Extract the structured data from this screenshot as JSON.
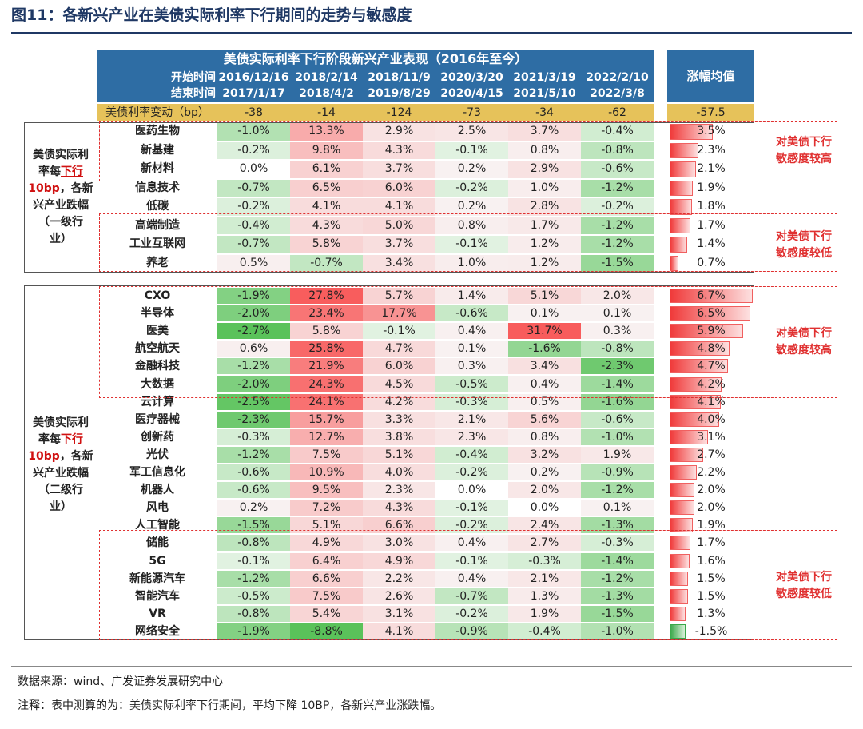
{
  "title": "图11：各新兴产业在美债实际利率下行期间的走势与敏感度",
  "header": {
    "table_title": "美债实际利率下行阶段新兴产业表现（2016年至今）",
    "start_label": "开始时间",
    "end_label": "结束时间",
    "periods": [
      {
        "start": "2016/12/16",
        "end": "2017/1/17"
      },
      {
        "start": "2018/2/14",
        "end": "2018/4/2"
      },
      {
        "start": "2018/11/9",
        "end": "2019/8/29"
      },
      {
        "start": "2020/3/20",
        "end": "2020/4/15"
      },
      {
        "start": "2021/3/19",
        "end": "2021/5/10"
      },
      {
        "start": "2022/2/10",
        "end": "2022/3/8"
      }
    ],
    "avg_label": "涨幅均值",
    "rate_change_label": "美债利率变动（bp）",
    "rate_changes": [
      "-38",
      "-14",
      "-124",
      "-73",
      "-34",
      "-62"
    ],
    "rate_change_avg": "-57.5"
  },
  "group1": {
    "side_label_a": "美债实际利",
    "side_label_b": "率每",
    "side_label_red": "下行",
    "side_label_c": "10bp",
    "side_label_d": "，各新",
    "side_label_e": "兴产业跌幅",
    "side_label_f": "（一级行",
    "side_label_g": "业）",
    "rows": [
      {
        "name": "医药生物",
        "values": [
          "-1.0%",
          "13.3%",
          "2.9%",
          "2.5%",
          "3.7%",
          "-0.4%"
        ],
        "nums": [
          -1.0,
          13.3,
          2.9,
          2.5,
          3.7,
          -0.4
        ],
        "avg": "3.5%",
        "avg_num": 3.5
      },
      {
        "name": "新基建",
        "values": [
          "-0.2%",
          "9.8%",
          "4.3%",
          "-0.1%",
          "0.8%",
          "-0.8%"
        ],
        "nums": [
          -0.2,
          9.8,
          4.3,
          -0.1,
          0.8,
          -0.8
        ],
        "avg": "2.3%",
        "avg_num": 2.3
      },
      {
        "name": "新材料",
        "values": [
          "0.0%",
          "6.1%",
          "3.7%",
          "0.2%",
          "2.9%",
          "-0.6%"
        ],
        "nums": [
          0.0,
          6.1,
          3.7,
          0.2,
          2.9,
          -0.6
        ],
        "avg": "2.1%",
        "avg_num": 2.1
      },
      {
        "name": "信息技术",
        "values": [
          "-0.7%",
          "6.5%",
          "6.0%",
          "-0.2%",
          "1.0%",
          "-1.2%"
        ],
        "nums": [
          -0.7,
          6.5,
          6.0,
          -0.2,
          1.0,
          -1.2
        ],
        "avg": "1.9%",
        "avg_num": 1.9
      },
      {
        "name": "低碳",
        "values": [
          "-0.2%",
          "4.1%",
          "4.1%",
          "0.2%",
          "2.8%",
          "-0.2%"
        ],
        "nums": [
          -0.2,
          4.1,
          4.1,
          0.2,
          2.8,
          -0.2
        ],
        "avg": "1.8%",
        "avg_num": 1.8
      },
      {
        "name": "高端制造",
        "values": [
          "-0.4%",
          "4.3%",
          "5.0%",
          "0.8%",
          "1.7%",
          "-1.2%"
        ],
        "nums": [
          -0.4,
          4.3,
          5.0,
          0.8,
          1.7,
          -1.2
        ],
        "avg": "1.7%",
        "avg_num": 1.7
      },
      {
        "name": "工业互联网",
        "values": [
          "-0.7%",
          "5.8%",
          "3.7%",
          "-0.1%",
          "1.2%",
          "-1.2%"
        ],
        "nums": [
          -0.7,
          5.8,
          3.7,
          -0.1,
          1.2,
          -1.2
        ],
        "avg": "1.4%",
        "avg_num": 1.4
      },
      {
        "name": "养老",
        "values": [
          "0.5%",
          "-0.7%",
          "3.4%",
          "1.0%",
          "1.2%",
          "-1.5%"
        ],
        "nums": [
          0.5,
          -0.7,
          3.4,
          1.0,
          1.2,
          -1.5
        ],
        "avg": "0.7%",
        "avg_num": 0.7
      }
    ]
  },
  "group2": {
    "side_label_a": "美债实际利",
    "side_label_b": "率每",
    "side_label_red": "下行",
    "side_label_c": "10bp",
    "side_label_d": "，各新",
    "side_label_e": "兴产业跌幅",
    "side_label_f": "（二级行",
    "side_label_g": "业）",
    "rows": [
      {
        "name": "CXO",
        "values": [
          "-1.9%",
          "27.8%",
          "5.7%",
          "1.4%",
          "5.1%",
          "2.0%"
        ],
        "nums": [
          -1.9,
          27.8,
          5.7,
          1.4,
          5.1,
          2.0
        ],
        "avg": "6.7%",
        "avg_num": 6.7
      },
      {
        "name": "半导体",
        "values": [
          "-2.0%",
          "23.4%",
          "17.7%",
          "-0.6%",
          "0.1%",
          "0.1%"
        ],
        "nums": [
          -2.0,
          23.4,
          17.7,
          -0.6,
          0.1,
          0.1
        ],
        "avg": "6.5%",
        "avg_num": 6.5
      },
      {
        "name": "医美",
        "values": [
          "-2.7%",
          "5.8%",
          "-0.1%",
          "0.4%",
          "31.7%",
          "0.3%"
        ],
        "nums": [
          -2.7,
          5.8,
          -0.1,
          0.4,
          31.7,
          0.3
        ],
        "avg": "5.9%",
        "avg_num": 5.9
      },
      {
        "name": "航空航天",
        "values": [
          "0.6%",
          "25.8%",
          "4.7%",
          "0.1%",
          "-1.6%",
          "-0.8%"
        ],
        "nums": [
          0.6,
          25.8,
          4.7,
          0.1,
          -1.6,
          -0.8
        ],
        "avg": "4.8%",
        "avg_num": 4.8
      },
      {
        "name": "金融科技",
        "values": [
          "-1.2%",
          "21.9%",
          "6.0%",
          "0.3%",
          "3.4%",
          "-2.3%"
        ],
        "nums": [
          -1.2,
          21.9,
          6.0,
          0.3,
          3.4,
          -2.3
        ],
        "avg": "4.7%",
        "avg_num": 4.7
      },
      {
        "name": "大数据",
        "values": [
          "-2.0%",
          "24.3%",
          "4.5%",
          "-0.5%",
          "0.4%",
          "-1.4%"
        ],
        "nums": [
          -2.0,
          24.3,
          4.5,
          -0.5,
          0.4,
          -1.4
        ],
        "avg": "4.2%",
        "avg_num": 4.2
      },
      {
        "name": "云计算",
        "values": [
          "-2.5%",
          "24.1%",
          "4.2%",
          "-0.3%",
          "0.5%",
          "-1.6%"
        ],
        "nums": [
          -2.5,
          24.1,
          4.2,
          -0.3,
          0.5,
          -1.6
        ],
        "avg": "4.1%",
        "avg_num": 4.1
      },
      {
        "name": "医疗器械",
        "values": [
          "-2.3%",
          "15.7%",
          "3.3%",
          "2.1%",
          "5.6%",
          "-0.6%"
        ],
        "nums": [
          -2.3,
          15.7,
          3.3,
          2.1,
          5.6,
          -0.6
        ],
        "avg": "4.0%",
        "avg_num": 4.0
      },
      {
        "name": "创新药",
        "values": [
          "-0.3%",
          "12.7%",
          "3.8%",
          "2.3%",
          "0.8%",
          "-1.0%"
        ],
        "nums": [
          -0.3,
          12.7,
          3.8,
          2.3,
          0.8,
          -1.0
        ],
        "avg": "3.1%",
        "avg_num": 3.1
      },
      {
        "name": "光伏",
        "values": [
          "-1.2%",
          "7.5%",
          "5.1%",
          "-0.4%",
          "3.2%",
          "1.9%"
        ],
        "nums": [
          -1.2,
          7.5,
          5.1,
          -0.4,
          3.2,
          1.9
        ],
        "avg": "2.7%",
        "avg_num": 2.7
      },
      {
        "name": "军工信息化",
        "values": [
          "-0.6%",
          "10.9%",
          "4.0%",
          "-0.2%",
          "0.2%",
          "-0.9%"
        ],
        "nums": [
          -0.6,
          10.9,
          4.0,
          -0.2,
          0.2,
          -0.9
        ],
        "avg": "2.2%",
        "avg_num": 2.2
      },
      {
        "name": "机器人",
        "values": [
          "-0.6%",
          "9.5%",
          "2.3%",
          "0.0%",
          "2.0%",
          "-1.2%"
        ],
        "nums": [
          -0.6,
          9.5,
          2.3,
          0.0,
          2.0,
          -1.2
        ],
        "avg": "2.0%",
        "avg_num": 2.0
      },
      {
        "name": "风电",
        "values": [
          "0.2%",
          "7.2%",
          "4.3%",
          "-0.1%",
          "0.0%",
          "0.1%"
        ],
        "nums": [
          0.2,
          7.2,
          4.3,
          -0.1,
          0.0,
          0.1
        ],
        "avg": "2.0%",
        "avg_num": 2.0
      },
      {
        "name": "人工智能",
        "values": [
          "-1.5%",
          "5.1%",
          "6.6%",
          "-0.2%",
          "2.4%",
          "-1.3%"
        ],
        "nums": [
          -1.5,
          5.1,
          6.6,
          -0.2,
          2.4,
          -1.3
        ],
        "avg": "1.9%",
        "avg_num": 1.9
      },
      {
        "name": "储能",
        "values": [
          "-0.8%",
          "4.9%",
          "3.0%",
          "0.4%",
          "2.7%",
          "-0.3%"
        ],
        "nums": [
          -0.8,
          4.9,
          3.0,
          0.4,
          2.7,
          -0.3
        ],
        "avg": "1.7%",
        "avg_num": 1.7
      },
      {
        "name": "5G",
        "values": [
          "-0.1%",
          "6.4%",
          "4.9%",
          "-0.1%",
          "-0.3%",
          "-1.4%"
        ],
        "nums": [
          -0.1,
          6.4,
          4.9,
          -0.1,
          -0.3,
          -1.4
        ],
        "avg": "1.6%",
        "avg_num": 1.6
      },
      {
        "name": "新能源汽车",
        "values": [
          "-1.2%",
          "6.6%",
          "2.2%",
          "0.4%",
          "2.1%",
          "-1.2%"
        ],
        "nums": [
          -1.2,
          6.6,
          2.2,
          0.4,
          2.1,
          -1.2
        ],
        "avg": "1.5%",
        "avg_num": 1.5
      },
      {
        "name": "智能汽车",
        "values": [
          "-0.5%",
          "7.5%",
          "2.6%",
          "-0.7%",
          "1.3%",
          "-1.3%"
        ],
        "nums": [
          -0.5,
          7.5,
          2.6,
          -0.7,
          1.3,
          -1.3
        ],
        "avg": "1.5%",
        "avg_num": 1.5
      },
      {
        "name": "VR",
        "values": [
          "-0.8%",
          "5.4%",
          "3.1%",
          "-0.2%",
          "1.9%",
          "-1.5%"
        ],
        "nums": [
          -0.8,
          5.4,
          3.1,
          -0.2,
          1.9,
          -1.5
        ],
        "avg": "1.3%",
        "avg_num": 1.3
      },
      {
        "name": "网络安全",
        "values": [
          "-1.9%",
          "-8.8%",
          "4.1%",
          "-0.9%",
          "-0.4%",
          "-1.0%"
        ],
        "nums": [
          -1.9,
          -8.8,
          4.1,
          -0.9,
          -0.4,
          -1.0
        ],
        "avg": "-1.5%",
        "avg_num": -1.5
      }
    ]
  },
  "notes": {
    "high_a": "对美债下行",
    "high_b": "敏感度较高",
    "low_a": "对美债下行",
    "low_b": "敏感度较低"
  },
  "footer": {
    "source": "数据来源：wind、广发证券发展研究中心",
    "note": "注释：表中测算的为：美债实际利率下行期间，平均下降 10BP，各新兴产业涨跌幅。"
  },
  "colors": {
    "header_blue": "#2e6da4",
    "header_gold": "#e6c25a",
    "pos_red": "#f06060",
    "neg_green": "#5cb85c",
    "dash_red": "#e03030",
    "title_navy": "#1f3864"
  }
}
